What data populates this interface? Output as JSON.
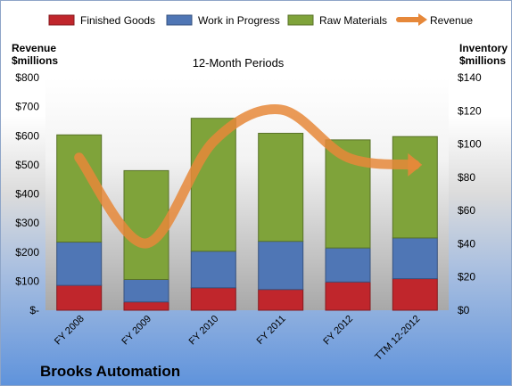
{
  "company_name": "Brooks Automation",
  "chart_data": {
    "type": "bar",
    "stacked": true,
    "title": "12-Month Periods",
    "categories": [
      "FY 2008",
      "FY 2009",
      "FY 2010",
      "FY 2011",
      "FY 2012",
      "TTM 12-2012"
    ],
    "series": [
      {
        "name": "Finished Goods",
        "axis": "right",
        "color": "#c0262c",
        "values": [
          15,
          5,
          13.5,
          12.5,
          17,
          19
        ]
      },
      {
        "name": "Work in Progress",
        "axis": "right",
        "color": "#4f76b5",
        "values": [
          26,
          13.5,
          22,
          29,
          20.5,
          24.5
        ]
      },
      {
        "name": "Raw Materials",
        "axis": "right",
        "color": "#7fa33a",
        "values": [
          64.5,
          65.5,
          80,
          65,
          65,
          61
        ]
      },
      {
        "name": "Revenue",
        "type": "line",
        "axis": "left",
        "color": "#e6883a",
        "values": [
          525,
          230,
          580,
          690,
          525,
          500
        ]
      }
    ],
    "y_left": {
      "title_line1": "Revenue",
      "title_line2": "$millions",
      "range": [
        0,
        800
      ],
      "ticks": [
        "$-",
        "$100",
        "$200",
        "$300",
        "$400",
        "$500",
        "$600",
        "$700",
        "$800"
      ]
    },
    "y_right": {
      "title_line1": "Inventory",
      "title_line2": "$millions",
      "range": [
        0,
        140
      ],
      "ticks": [
        "$0",
        "$20",
        "$40",
        "$60",
        "$80",
        "$100",
        "$120",
        "$140"
      ]
    },
    "legend_position": "top",
    "grid": false
  }
}
